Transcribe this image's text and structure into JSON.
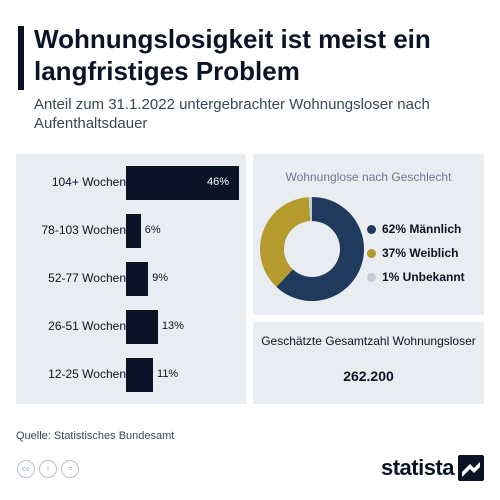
{
  "header": {
    "title": "Wohnungslosigkeit ist meist ein langfristiges Problem",
    "subtitle": "Anteil zum 31.1.2022 untergebrachter Wohnungsloser nach Aufenthaltsdauer"
  },
  "chart_data": [
    {
      "type": "bar",
      "orientation": "horizontal",
      "categories": [
        "104+ Wochen",
        "78-103 Wochen",
        "52-77 Wochen",
        "26-51 Wochen",
        "12-25 Wochen"
      ],
      "values": [
        46,
        6,
        9,
        13,
        11
      ],
      "value_labels": [
        "46%",
        "6%",
        "9%",
        "13%",
        "11%"
      ],
      "unit": "%",
      "xlim": [
        0,
        46
      ],
      "bar_color": "#0b1426"
    },
    {
      "type": "pie",
      "style": "donut",
      "title": "Wohnunglose nach Geschlecht",
      "slices": [
        {
          "label": "Männlich",
          "value": 62,
          "display": "62% Männlich",
          "color": "#1f3a5c"
        },
        {
          "label": "Weiblich",
          "value": 37,
          "display": "37% Weiblich",
          "color": "#b59a2d"
        },
        {
          "label": "Unbekannt",
          "value": 1,
          "display": "1% Unbekannt",
          "color": "#c4ccd6"
        }
      ]
    }
  ],
  "total": {
    "label": "Geschätzte Gesamtzahl Wohnungsloser",
    "value": "262.200"
  },
  "footer": {
    "source": "Quelle: Statistisches Bundesamt",
    "cc_icons": [
      "cc-icon",
      "by-icon",
      "nd-icon"
    ],
    "cc_glyphs": [
      "cc",
      "i",
      "="
    ],
    "logo_text": "statista"
  },
  "colors": {
    "background": "#ffffff",
    "panel": "#e9edf2",
    "text": "#0b1426",
    "bar": "#0b1426"
  }
}
